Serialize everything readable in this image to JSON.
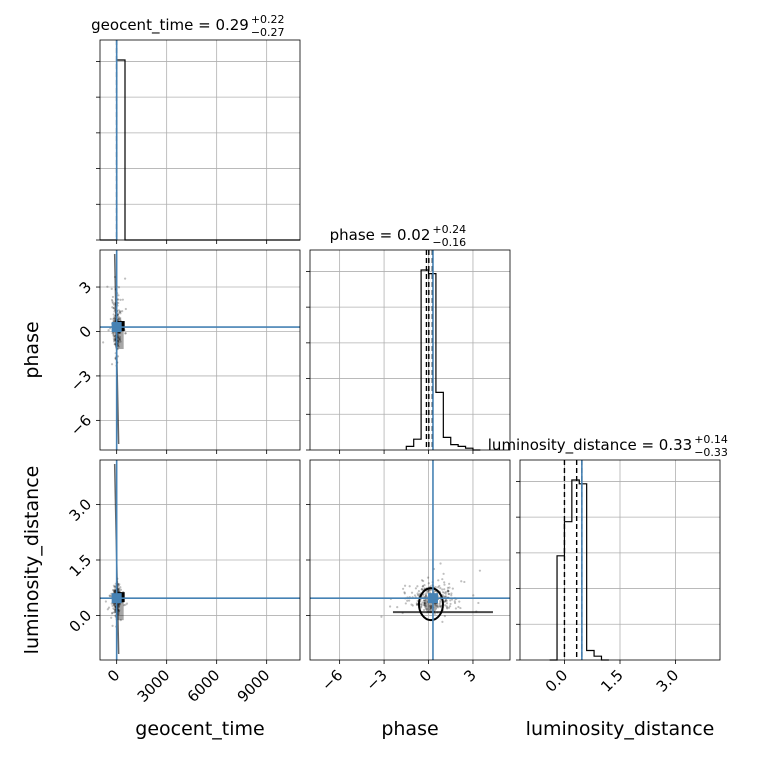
{
  "chart_data": {
    "type": "corner",
    "parameters": [
      "geocent_time",
      "phase",
      "luminosity_distance"
    ],
    "axis_labels": [
      "geocent_time",
      "phase",
      "luminosity_distance"
    ],
    "ranges": {
      "geocent_time": [
        -1000,
        11000
      ],
      "phase": [
        -8,
        5.5
      ],
      "luminosity_distance": [
        -1.2,
        4.2
      ]
    },
    "ticks": {
      "geocent_time": [
        0,
        3000,
        6000,
        9000
      ],
      "phase": [
        -6,
        -3,
        0,
        3
      ],
      "luminosity_distance": [
        0.0,
        1.5,
        3.0
      ]
    },
    "tick_labels": {
      "geocent_time": [
        "0",
        "3000",
        "6000",
        "9000"
      ],
      "phase": [
        "−6",
        "−3",
        "0",
        "3"
      ],
      "luminosity_distance": [
        "0.0",
        "1.5",
        "3.0"
      ]
    },
    "truths": {
      "geocent_time": 0,
      "phase": 0.3,
      "luminosity_distance": 0.47
    },
    "titles": [
      {
        "param": "geocent_time",
        "text": "geocent_time = 0.29",
        "plus": "+0.22",
        "minus": "−0.27"
      },
      {
        "param": "phase",
        "text": "phase = 0.02",
        "plus": "+0.24",
        "minus": "−0.16"
      },
      {
        "param": "luminosity_distance",
        "text": "luminosity_distance = 0.33",
        "plus": "+0.14",
        "minus": "−0.33"
      }
    ],
    "quantiles": {
      "geocent_time": [
        0.02,
        0.29,
        0.51
      ],
      "phase": [
        -0.14,
        0.02,
        0.26
      ],
      "luminosity_distance": [
        0.0,
        0.33,
        0.47
      ]
    },
    "histograms": {
      "geocent_time": {
        "edges": [
          -1000,
          0,
          500,
          11000
        ],
        "counts": [
          0,
          1.0,
          0
        ]
      },
      "phase": {
        "edges": [
          -1.5,
          -1.0,
          -0.5,
          0.0,
          0.5,
          1.0,
          1.5,
          2.0,
          2.5,
          3.0,
          3.5
        ],
        "counts": [
          0.02,
          0.06,
          1.0,
          0.98,
          0.32,
          0.07,
          0.03,
          0.02,
          0.01,
          0.0
        ]
      },
      "luminosity_distance": {
        "edges": [
          -0.4,
          -0.2,
          0.0,
          0.2,
          0.4,
          0.6,
          0.8,
          1.0,
          1.2
        ],
        "counts": [
          0.0,
          0.55,
          0.73,
          0.95,
          0.93,
          0.05,
          0.02,
          0.0
        ]
      }
    },
    "grid": true
  }
}
